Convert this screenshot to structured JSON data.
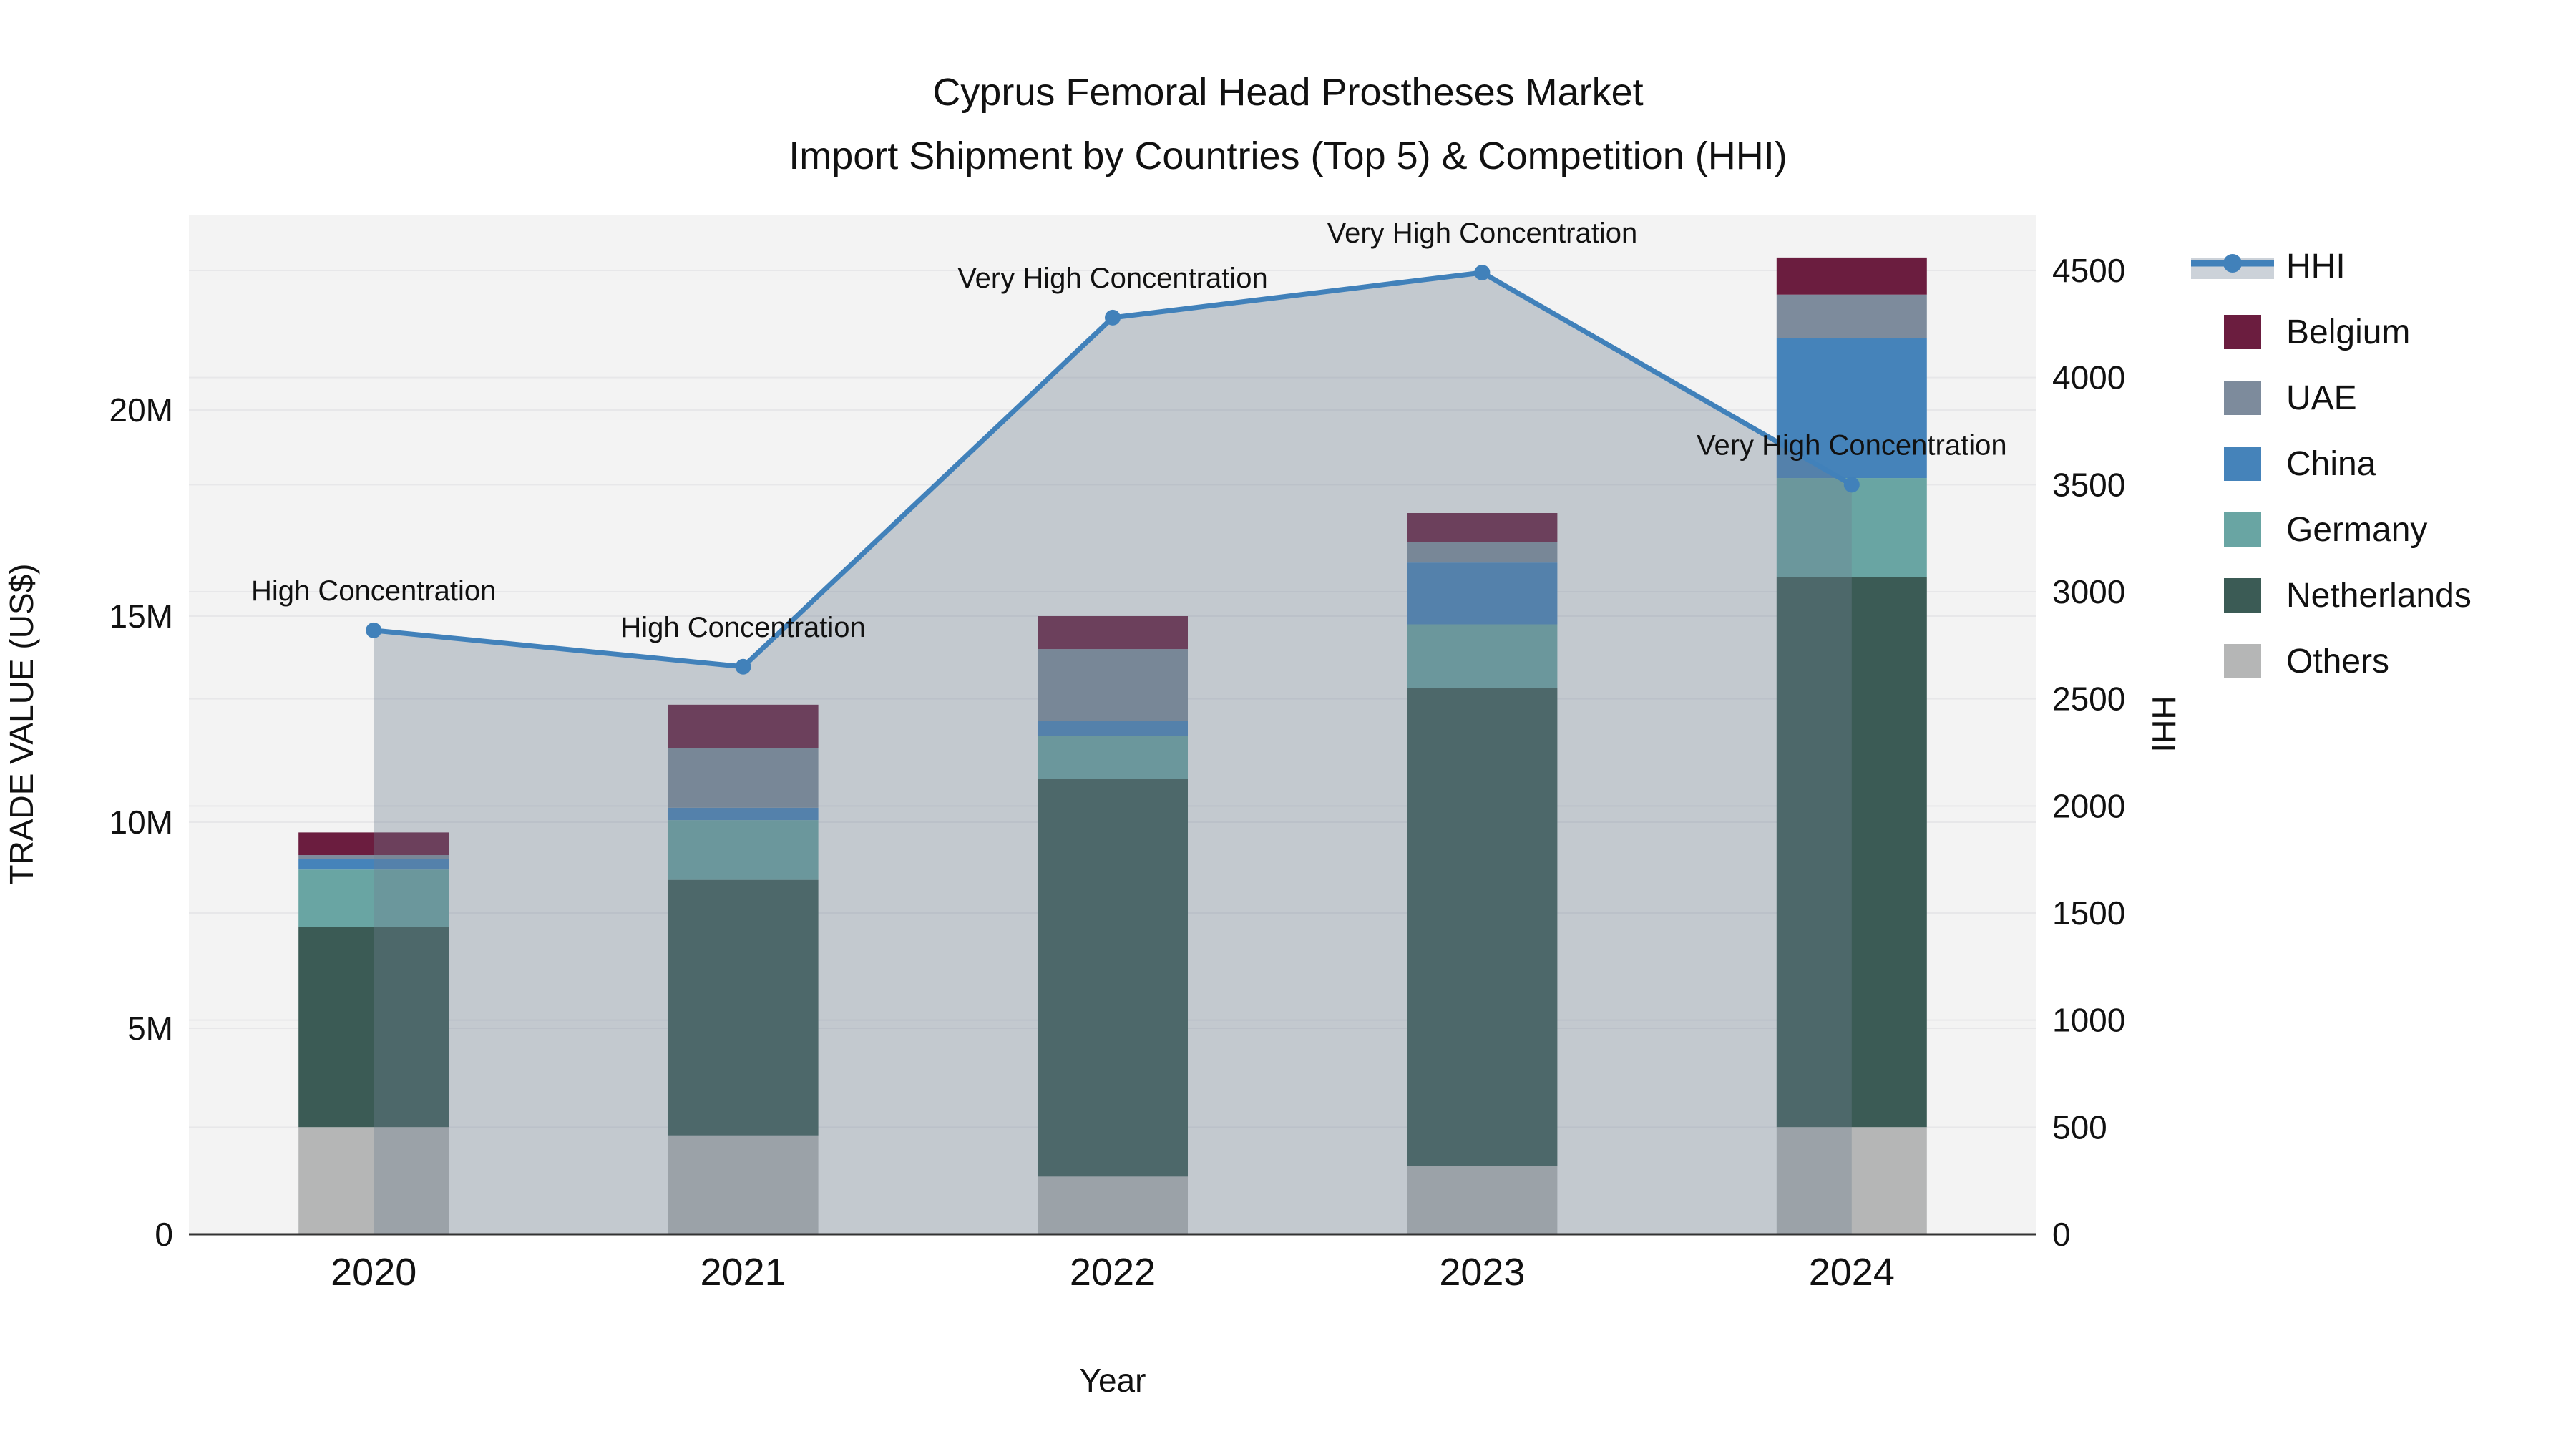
{
  "title": {
    "line1": "Cyprus Femoral Head Prostheses Market",
    "line2": "Import Shipment by Countries (Top 5) & Competition (HHI)"
  },
  "axes": {
    "x_title": "Year",
    "y_left_title": "TRADE VALUE (US$)",
    "y_right_title": "HHI",
    "x_categories": [
      "2020",
      "2021",
      "2022",
      "2023",
      "2024"
    ],
    "y_left_ticks": [
      {
        "value": 0,
        "label": "0"
      },
      {
        "value": 5,
        "label": "5M"
      },
      {
        "value": 10,
        "label": "10M"
      },
      {
        "value": 15,
        "label": "15M"
      },
      {
        "value": 20,
        "label": "20M"
      }
    ],
    "y_right_ticks": [
      0,
      500,
      1000,
      1500,
      2000,
      2500,
      3000,
      3500,
      4000,
      4500
    ]
  },
  "chart_data": {
    "type": "combo: stacked bar (left axis) + line with filled area (right axis)",
    "categories": [
      "2020",
      "2021",
      "2022",
      "2023",
      "2024"
    ],
    "bar_value_unit": "USD millions (left axis: TRADE VALUE US$)",
    "stack_order_bottom_to_top": [
      "Others",
      "Netherlands",
      "Germany",
      "China",
      "UAE",
      "Belgium"
    ],
    "series": [
      {
        "name": "Others",
        "color": "#b5b6b6",
        "values": [
          2.6,
          2.4,
          1.4,
          1.65,
          2.6
        ]
      },
      {
        "name": "Netherlands",
        "color": "#3b5b55",
        "values": [
          4.85,
          6.2,
          9.65,
          11.6,
          13.35
        ]
      },
      {
        "name": "Germany",
        "color": "#69a5a3",
        "values": [
          1.4,
          1.45,
          1.05,
          1.55,
          2.4
        ]
      },
      {
        "name": "China",
        "color": "#4583ba",
        "values": [
          0.25,
          0.3,
          0.35,
          1.5,
          3.4
        ]
      },
      {
        "name": "UAE",
        "color": "#7d8b9c",
        "values": [
          0.1,
          1.45,
          1.75,
          0.5,
          1.05
        ]
      },
      {
        "name": "Belgium",
        "color": "#6b1d3f",
        "values": [
          0.55,
          1.05,
          0.8,
          0.7,
          0.9
        ]
      }
    ],
    "bar_totals": [
      9.75,
      12.85,
      15.0,
      17.5,
      23.7
    ],
    "line_series": {
      "name": "HHI",
      "axis": "right",
      "color": "#4181ba",
      "fill_color": "rgba(112,128,144,0.36)",
      "values": [
        2820,
        2650,
        4280,
        4490,
        3500
      ]
    },
    "annotations": [
      {
        "category": "2020",
        "text": "High Concentration"
      },
      {
        "category": "2021",
        "text": "High Concentration"
      },
      {
        "category": "2022",
        "text": "Very High Concentration"
      },
      {
        "category": "2023",
        "text": "Very High Concentration"
      },
      {
        "category": "2024",
        "text": "Very High Concentration"
      }
    ],
    "axis_ranges": {
      "left_trade_value_M": [
        0,
        24.74
      ],
      "right_hhi": [
        0,
        4760
      ]
    },
    "grid": true,
    "legend_position": "right"
  },
  "legend": {
    "items": [
      {
        "label": "HHI",
        "type": "line",
        "color": "#4181ba"
      },
      {
        "label": "Belgium",
        "type": "swatch",
        "color": "#6b1d3f"
      },
      {
        "label": "UAE",
        "type": "swatch",
        "color": "#7d8b9c"
      },
      {
        "label": "China",
        "type": "swatch",
        "color": "#4583ba"
      },
      {
        "label": "Germany",
        "type": "swatch",
        "color": "#69a5a3"
      },
      {
        "label": "Netherlands",
        "type": "swatch",
        "color": "#3b5b55"
      },
      {
        "label": "Others",
        "type": "swatch",
        "color": "#b5b6b6"
      }
    ]
  },
  "colors": {
    "figure_background": "#ffffff",
    "plot_background": "#f3f3f3",
    "gridline": "#e7e7e9",
    "axis_line": "#333333",
    "text": "#111111",
    "hhi_line": "#4181ba",
    "hhi_fill": "rgba(112,128,144,0.36)",
    "legend_fill_band": "#ccd2d9"
  }
}
